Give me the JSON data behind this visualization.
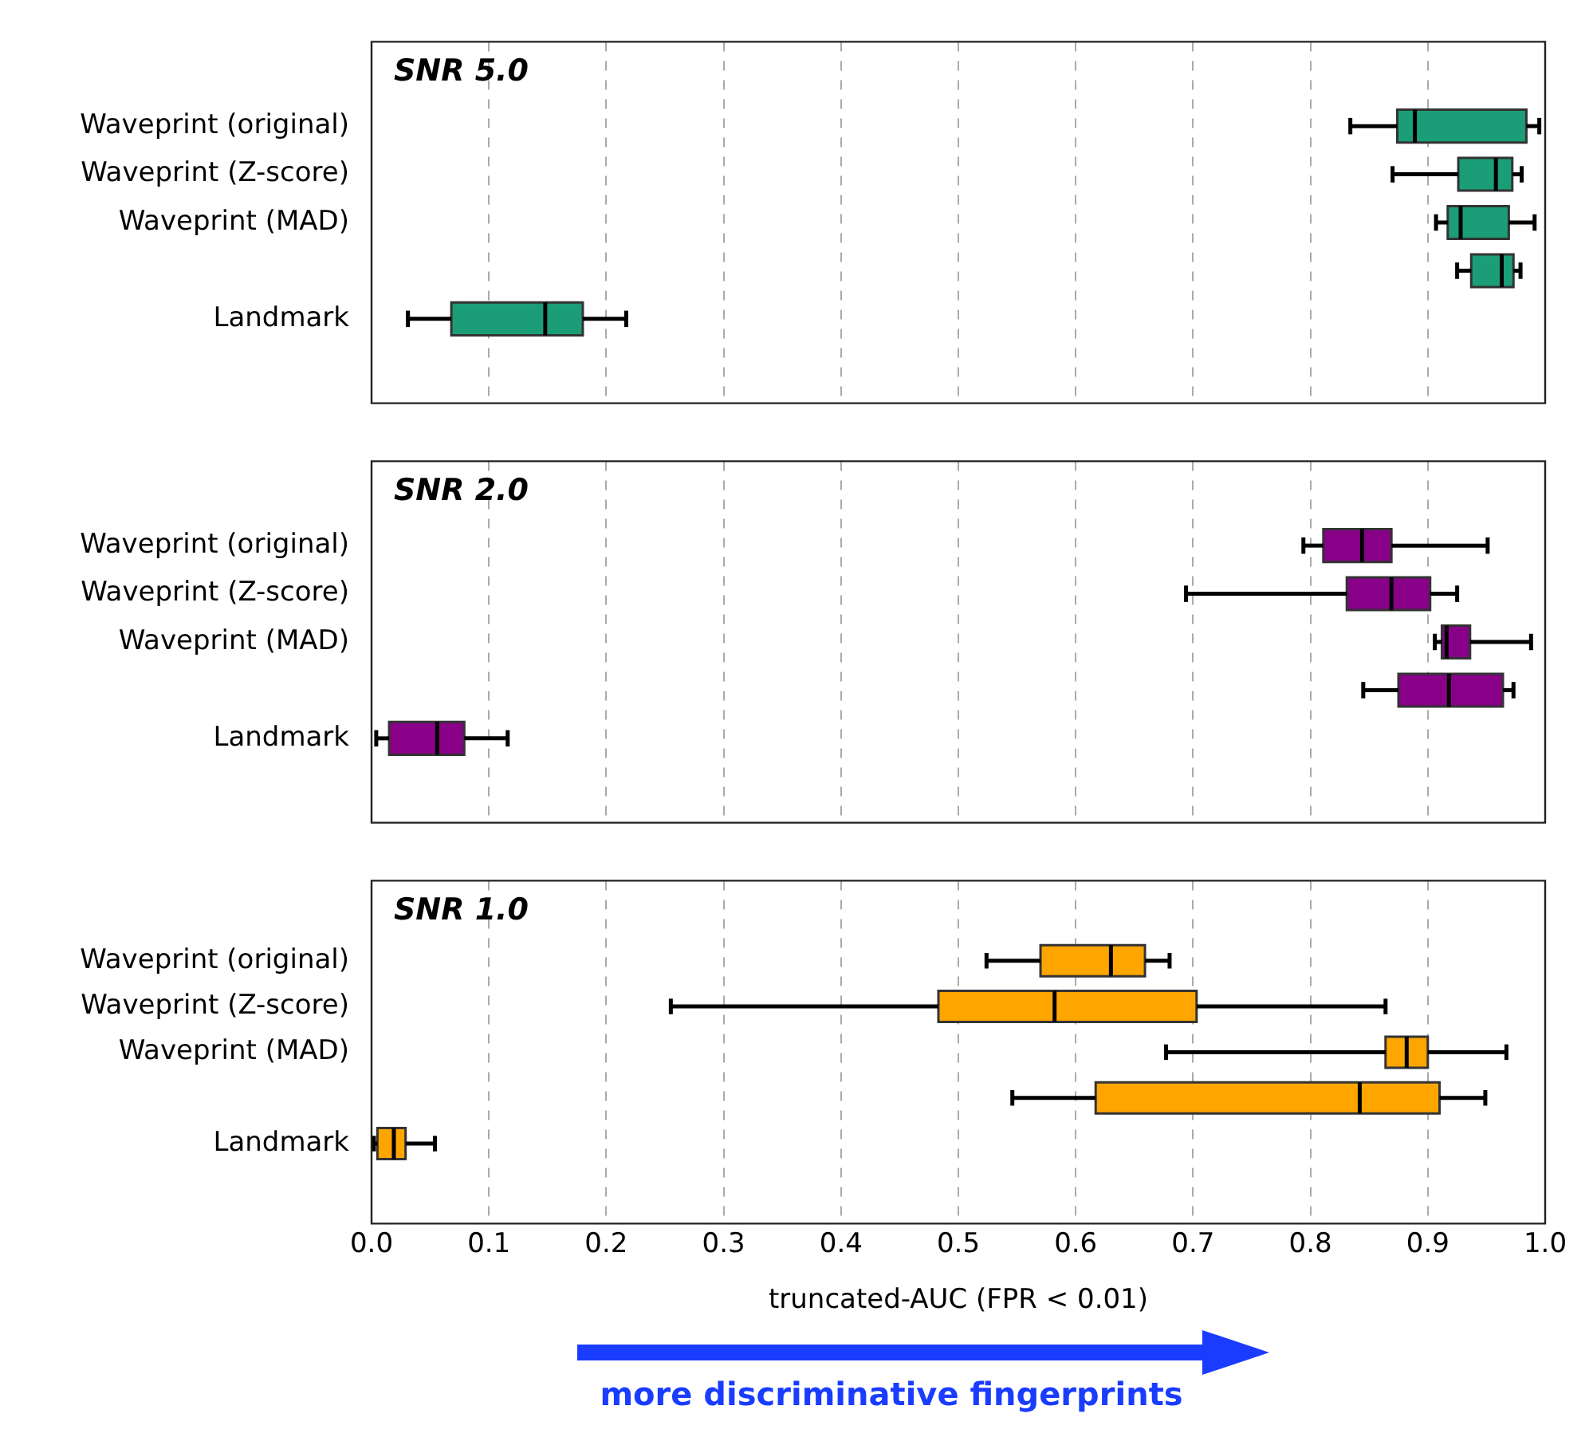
{
  "chart_data": [
    {
      "type": "box",
      "orientation": "horizontal",
      "title": "SNR 5.0",
      "color": "#1b9e77",
      "grid": "x",
      "tick_labels": "y",
      "categories": [
        "Waveprint (original)",
        "Waveprint (Z-score)",
        "Waveprint (MAD)",
        null,
        "Landmark"
      ],
      "boxes": [
        {
          "low": 0.834,
          "q1": 0.874,
          "median": 0.889,
          "q3": 0.984,
          "high": 0.995
        },
        {
          "low": 0.87,
          "q1": 0.926,
          "median": 0.958,
          "q3": 0.972,
          "high": 0.98
        },
        {
          "low": 0.907,
          "q1": 0.917,
          "median": 0.928,
          "q3": 0.969,
          "high": 0.991
        },
        {
          "low": 0.925,
          "q1": 0.937,
          "median": 0.963,
          "q3": 0.973,
          "high": 0.979
        },
        {
          "low": 0.031,
          "q1": 0.068,
          "median": 0.148,
          "q3": 0.18,
          "high": 0.217
        }
      ],
      "xlim": [
        0,
        1
      ],
      "xticks": [
        0,
        0.1,
        0.2,
        0.3,
        0.4,
        0.5,
        0.6,
        0.7,
        0.8,
        0.9,
        1
      ]
    },
    {
      "type": "box",
      "orientation": "horizontal",
      "title": "SNR 2.0",
      "color": "#880088",
      "grid": "x",
      "tick_labels": "y",
      "categories": [
        "Waveprint (original)",
        "Waveprint (Z-score)",
        "Waveprint (MAD)",
        null,
        "Landmark"
      ],
      "boxes": [
        {
          "low": 0.794,
          "q1": 0.811,
          "median": 0.844,
          "q3": 0.869,
          "high": 0.951
        },
        {
          "low": 0.694,
          "q1": 0.831,
          "median": 0.869,
          "q3": 0.902,
          "high": 0.925
        },
        {
          "low": 0.906,
          "q1": 0.912,
          "median": 0.916,
          "q3": 0.936,
          "high": 0.988
        },
        {
          "low": 0.845,
          "q1": 0.875,
          "median": 0.918,
          "q3": 0.964,
          "high": 0.973
        },
        {
          "low": 0.004,
          "q1": 0.015,
          "median": 0.056,
          "q3": 0.079,
          "high": 0.116
        }
      ],
      "xlim": [
        0,
        1
      ],
      "xticks": [
        0,
        0.1,
        0.2,
        0.3,
        0.4,
        0.5,
        0.6,
        0.7,
        0.8,
        0.9,
        1
      ]
    },
    {
      "type": "box",
      "orientation": "horizontal",
      "title": "SNR 1.0",
      "color": "#ffa500",
      "grid": "x",
      "xlabel": "truncated-AUC (FPR < 0.01)",
      "annotations": [
        "more discriminative fingerprints"
      ],
      "categories": [
        "Waveprint (original)",
        "Waveprint (Z-score)",
        "Waveprint (MAD)",
        null,
        "Landmark"
      ],
      "boxes": [
        {
          "low": 0.524,
          "q1": 0.57,
          "median": 0.63,
          "q3": 0.659,
          "high": 0.68
        },
        {
          "low": 0.255,
          "q1": 0.483,
          "median": 0.582,
          "q3": 0.703,
          "high": 0.864
        },
        {
          "low": 0.677,
          "q1": 0.864,
          "median": 0.882,
          "q3": 0.9,
          "high": 0.967
        },
        {
          "low": 0.546,
          "q1": 0.617,
          "median": 0.842,
          "q3": 0.91,
          "high": 0.949
        },
        {
          "low": 0.002,
          "q1": 0.005,
          "median": 0.019,
          "q3": 0.029,
          "high": 0.054
        }
      ],
      "xlim": [
        0,
        1
      ],
      "xticks": [
        {
          "value": 0,
          "label": "0.0"
        },
        {
          "value": 0.1,
          "label": "0.1"
        },
        {
          "value": 0.2,
          "label": "0.2"
        },
        {
          "value": 0.3,
          "label": "0.3"
        },
        {
          "value": 0.4,
          "label": "0.4"
        },
        {
          "value": 0.5,
          "label": "0.5"
        },
        {
          "value": 0.6,
          "label": "0.6"
        },
        {
          "value": 0.7,
          "label": "0.7"
        },
        {
          "value": 0.8,
          "label": "0.8"
        },
        {
          "value": 0.9,
          "label": "0.9"
        },
        {
          "value": 1,
          "label": "1.0"
        }
      ]
    }
  ]
}
